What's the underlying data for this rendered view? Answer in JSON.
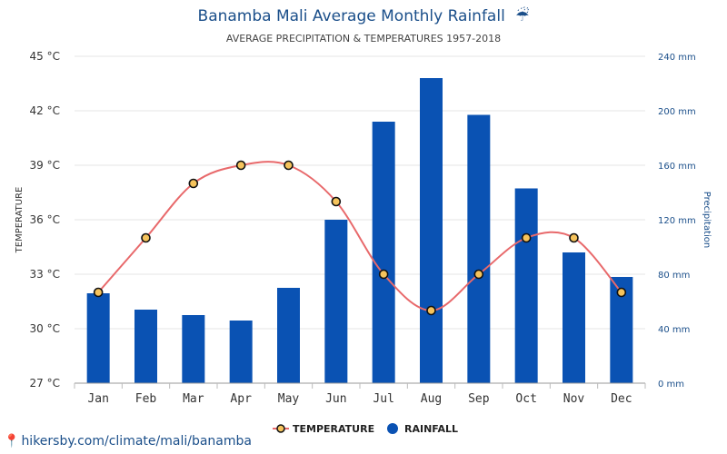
{
  "chart_data": {
    "type": "bar+line",
    "title": "Banamba Mali Average Monthly Rainfall",
    "title_icon": "umbrella-rain-icon",
    "subtitle": "AVERAGE PRECIPITATION & TEMPERATURES 1957-2018",
    "categories": [
      "Jan",
      "Feb",
      "Mar",
      "Apr",
      "May",
      "Jun",
      "Jul",
      "Aug",
      "Sep",
      "Oct",
      "Nov",
      "Dec"
    ],
    "temperature": {
      "name": "TEMPERATURE",
      "unit": "°C",
      "values": [
        32,
        35,
        38,
        39,
        39,
        37,
        33,
        31,
        33,
        35,
        35,
        32
      ],
      "axis_label": "TEMPERATURE",
      "ylim": [
        27,
        45
      ],
      "ticks": [
        "27 °C",
        "30 °C",
        "33 °C",
        "36 °C",
        "39 °C",
        "42 °C",
        "45 °C"
      ],
      "color": "#e8696b",
      "marker_color": "#f5c35c"
    },
    "rainfall": {
      "name": "RAINFALL",
      "unit": "mm",
      "values": [
        66,
        54,
        50,
        46,
        70,
        120,
        192,
        224,
        197,
        143,
        96,
        78
      ],
      "axis_label": "Precipitation",
      "ylim": [
        0,
        240
      ],
      "ticks": [
        "0 mm",
        "40 mm",
        "80 mm",
        "120 mm",
        "160 mm",
        "200 mm",
        "240 mm"
      ],
      "color": "#0a52b3"
    },
    "legend": {
      "position": "bottom-center"
    }
  },
  "footer": {
    "text": "hikersby.com/climate/mali/banamba",
    "icon": "location-pin-icon"
  }
}
